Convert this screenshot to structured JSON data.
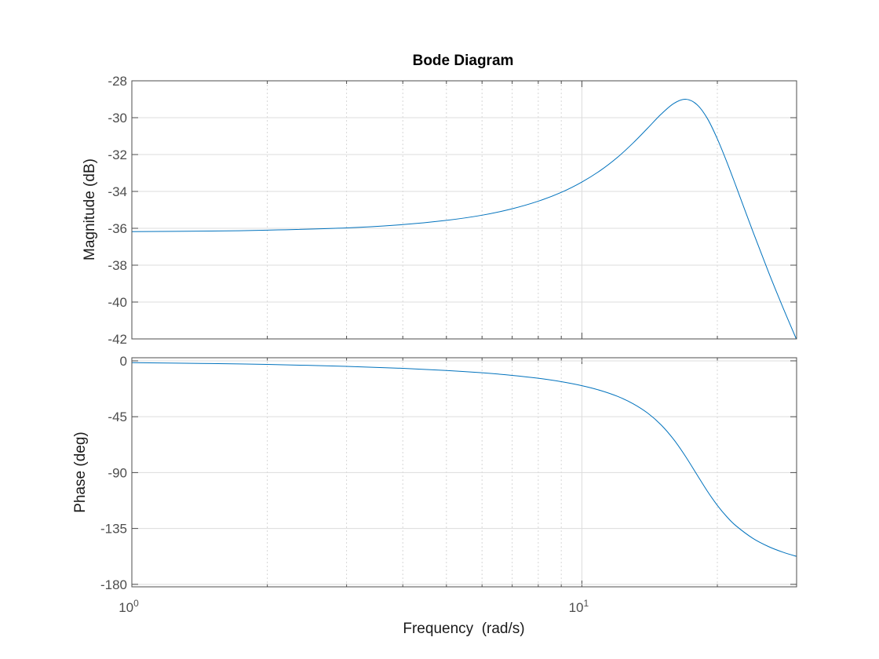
{
  "chart_data": {
    "type": "line",
    "title": "Bode Diagram",
    "xlabel": "Frequency  (rad/s)",
    "xscale": "log",
    "xlim": [
      1,
      30
    ],
    "x_ticks": [
      {
        "base": "10",
        "exp": "0",
        "value": 1
      },
      {
        "base": "10",
        "exp": "1",
        "value": 10
      }
    ],
    "grid": true,
    "line_color": "#0072bd",
    "x": [
      1,
      1.5,
      2,
      3,
      4,
      5,
      6,
      7,
      8,
      9,
      10,
      11,
      12,
      13,
      14,
      15,
      16,
      17,
      18,
      19,
      20,
      21,
      22,
      24,
      26,
      28,
      30
    ],
    "panels": [
      {
        "ylabel": "Magnitude (dB)",
        "ylim": [
          -42,
          -28
        ],
        "yticks": [
          -28,
          -30,
          -32,
          -34,
          -36,
          -38,
          -40,
          -42
        ],
        "values": [
          -36.18,
          -36.15,
          -36.1,
          -35.98,
          -35.8,
          -35.57,
          -35.29,
          -34.94,
          -34.53,
          -34.05,
          -33.49,
          -32.86,
          -32.15,
          -31.37,
          -30.57,
          -29.81,
          -29.23,
          -29.0,
          -29.28,
          -30.04,
          -31.15,
          -32.41,
          -33.71,
          -36.19,
          -38.39,
          -40.32,
          -42.04
        ]
      },
      {
        "ylabel": "Phase (deg)",
        "ylim": [
          -182,
          2.5
        ],
        "yticks": [
          0,
          -45,
          -90,
          -135,
          -180
        ],
        "values": [
          -1.44,
          -2.16,
          -2.9,
          -4.42,
          -6.02,
          -7.73,
          -9.6,
          -11.69,
          -14.04,
          -16.78,
          -20.0,
          -23.86,
          -28.6,
          -34.55,
          -42.06,
          -51.58,
          -63.35,
          -77.02,
          -91.42,
          -104.92,
          -116.39,
          -125.61,
          -132.84,
          -143.02,
          -149.62,
          -154.16,
          -157.46
        ]
      }
    ]
  }
}
